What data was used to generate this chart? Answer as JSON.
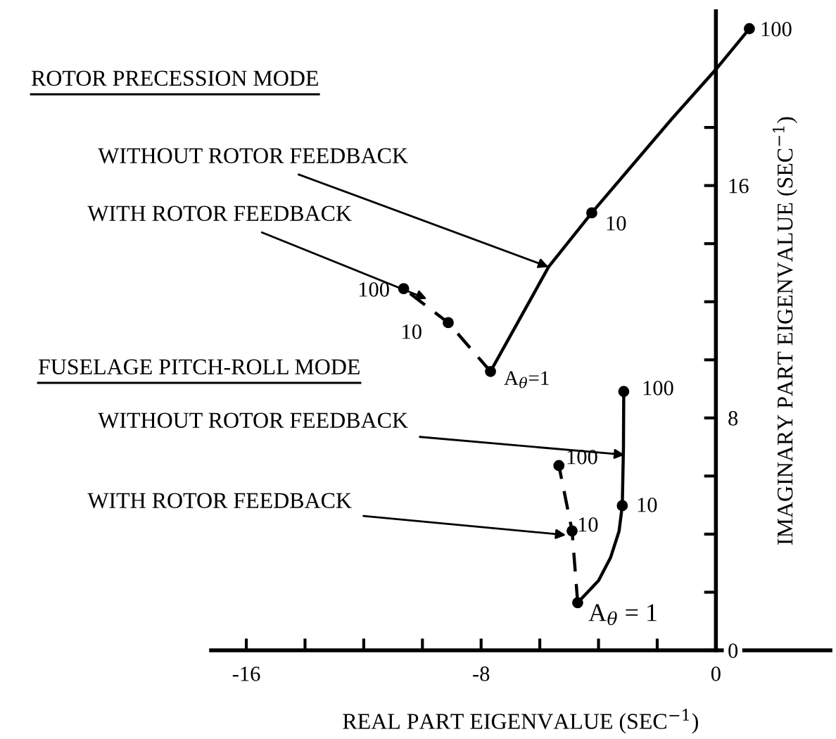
{
  "chart_data": {
    "type": "line",
    "xlabel": "REAL PART EIGENVALUE (SEC$^{−1}$)",
    "ylabel": "IMAGINARY PART EIGENVALUE (SEC$^{−1}$)",
    "xlim": [
      -17.2,
      3.9
    ],
    "ylim": [
      0,
      22
    ],
    "xticks": [
      -16,
      {
        "value": -14,
        "label": null
      },
      {
        "value": -12,
        "label": null
      },
      {
        "value": -10,
        "label": null
      },
      -8,
      {
        "value": -6,
        "label": null
      },
      {
        "value": -4,
        "label": null
      },
      {
        "value": -2,
        "label": null
      },
      0
    ],
    "yticks": [
      0,
      {
        "value": 2,
        "label": null
      },
      {
        "value": 4,
        "label": null
      },
      {
        "value": 6,
        "label": null
      },
      8,
      {
        "value": 10,
        "label": null
      },
      {
        "value": 12,
        "label": null
      },
      {
        "value": 14,
        "label": null
      },
      16,
      {
        "value": 18,
        "label": null
      }
    ],
    "series": [
      {
        "type": "line",
        "color": "#000000",
        "line_style": "solid",
        "x": [
          -7.68,
          -5.7,
          -4.23,
          -1.5,
          0,
          1.14
        ],
        "values": [
          9.6,
          13.2,
          15.06,
          18.3,
          20.0,
          21.4
        ]
      },
      {
        "type": "line",
        "color": "#000000",
        "line_style": "dashed",
        "x": [
          -7.68,
          -9.12,
          -10.64
        ],
        "values": [
          9.6,
          11.28,
          12.45
        ]
      },
      {
        "type": "line",
        "color": "#000000",
        "line_style": "solid",
        "x": [
          -4.71,
          -4.0,
          -3.59,
          -3.3,
          -3.19,
          -3.15,
          -3.14
        ],
        "values": [
          1.64,
          2.4,
          3.19,
          4.1,
          4.98,
          7.0,
          8.91
        ]
      },
      {
        "type": "line",
        "color": "#000000",
        "line_style": "dashed",
        "x": [
          -4.71,
          -4.9,
          -5.35
        ],
        "values": [
          1.64,
          4.11,
          6.36
        ]
      },
      {
        "type": "scatter",
        "color": "#000000",
        "marker": "circle",
        "x": [
          -7.68,
          -4.23,
          1.14,
          -9.12,
          -10.64,
          -4.71,
          -3.19,
          -3.14,
          -4.9,
          -5.35
        ],
        "values": [
          9.6,
          15.06,
          21.4,
          11.28,
          12.45,
          1.64,
          4.98,
          8.91,
          4.11,
          6.36
        ]
      }
    ],
    "annotations": [
      "ROTOR PRECESSION MODE",
      "FUSELAGE PITCH-ROLL MODE",
      {
        "text": "WITHOUT ROTOR FEEDBACK",
        "x": -5.7,
        "y": 13.2
      },
      {
        "text": "WITH ROTOR FEEDBACK",
        "x": -9.85,
        "y": 12.1
      },
      {
        "text": "WITHOUT ROTOR FEEDBACK",
        "x": -3.11,
        "y": 6.73
      },
      {
        "text": "WITH ROTOR FEEDBACK",
        "x": -5.11,
        "y": 3.97
      },
      {
        "text": "100",
        "x": 1.14,
        "y": 21.4
      },
      {
        "text": "10",
        "x": -4.23,
        "y": 15.06
      },
      {
        "text": "A$_{θ}$=1",
        "x": -7.68,
        "y": 9.6
      },
      {
        "text": "100",
        "x": -10.64,
        "y": 12.45
      },
      {
        "text": "10",
        "x": -9.12,
        "y": 11.28
      },
      {
        "text": "100",
        "x": -3.14,
        "y": 8.91
      },
      {
        "text": "10",
        "x": -3.19,
        "y": 4.98
      },
      {
        "text": "A$_{θ}$ = 1",
        "x": -4.71,
        "y": 1.64
      },
      {
        "text": "100",
        "x": -5.35,
        "y": 6.36
      },
      {
        "text": "10",
        "x": -4.9,
        "y": 4.11
      }
    ]
  }
}
